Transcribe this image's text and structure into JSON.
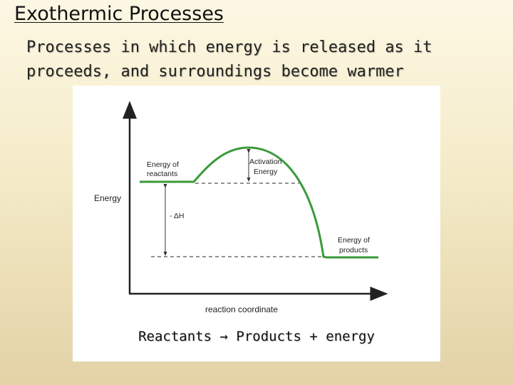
{
  "slide": {
    "title": "Exothermic Processes",
    "subtitle": "Processes in which energy is released as it proceeds, and surroundings become warmer"
  },
  "diagram": {
    "y_axis_label": "Energy",
    "x_axis_label": "reaction coordinate",
    "reactants_label_line1": "Energy of",
    "reactants_label_line2": "reactants",
    "activation_label_line1": "Activation",
    "activation_label_line2": "Energy",
    "delta_h_label": "- ΔH",
    "products_label_line1": "Energy of",
    "products_label_line2": "products",
    "curve_color": "#3a9a3a"
  },
  "equation": {
    "reactants": "Reactants",
    "arrow": "→",
    "products": "Products + energy"
  }
}
